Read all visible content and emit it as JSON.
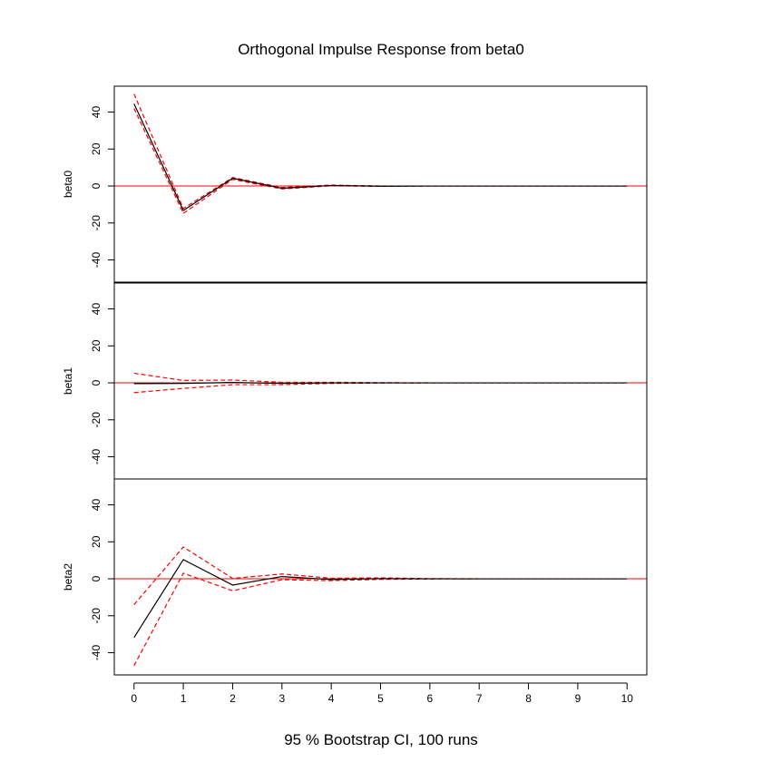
{
  "chart_data": {
    "type": "line",
    "title": "Orthogonal Impulse Response from beta0",
    "xlabel": "95 % Bootstrap CI,  100 runs",
    "x": [
      0,
      1,
      2,
      3,
      4,
      5,
      6,
      7,
      8,
      9,
      10
    ],
    "x_ticks": [
      "0",
      "1",
      "2",
      "3",
      "4",
      "5",
      "6",
      "7",
      "8",
      "9",
      "10"
    ],
    "xlim": [
      -0.4,
      10.4
    ],
    "ylim": [
      -52,
      54
    ],
    "y_ticks": [
      -40,
      -20,
      0,
      20,
      40
    ],
    "y_tick_labels": [
      "-40",
      "-20",
      "0",
      "20",
      "40"
    ],
    "colors": {
      "response": "#000000",
      "ci": "#ff0000",
      "zero_line": "#ff0000"
    },
    "panels": [
      {
        "label": "beta0",
        "response": [
          44.5,
          -13.2,
          4.2,
          -1.2,
          0.3,
          -0.1,
          0.0,
          0.0,
          0.0,
          0.0,
          0.0
        ],
        "upper": [
          49.8,
          -12.2,
          4.6,
          -0.8,
          0.5,
          0.0,
          0.0,
          0.0,
          0.0,
          0.0,
          0.0
        ],
        "lower": [
          42.0,
          -14.8,
          3.6,
          -1.6,
          0.1,
          -0.2,
          0.0,
          0.0,
          0.0,
          0.0,
          0.0
        ]
      },
      {
        "label": "beta1",
        "response": [
          -0.4,
          -0.3,
          0.2,
          -0.3,
          0.0,
          0.0,
          0.0,
          0.0,
          0.0,
          0.0,
          0.0
        ],
        "upper": [
          5.2,
          1.3,
          1.5,
          0.3,
          0.3,
          0.1,
          0.0,
          0.0,
          0.0,
          0.0,
          0.0
        ],
        "lower": [
          -5.3,
          -3.0,
          -1.0,
          -1.0,
          -0.3,
          -0.1,
          0.0,
          0.0,
          0.0,
          0.0,
          0.0
        ]
      },
      {
        "label": "beta2",
        "response": [
          -31.8,
          10.4,
          -3.4,
          1.2,
          -0.4,
          0.1,
          0.0,
          0.0,
          0.0,
          0.0,
          0.0
        ],
        "upper": [
          -14.0,
          17.2,
          0.2,
          2.6,
          0.3,
          0.5,
          0.1,
          0.0,
          0.0,
          0.0,
          0.0
        ],
        "lower": [
          -47.0,
          3.0,
          -6.5,
          -0.5,
          -1.0,
          -0.3,
          -0.1,
          0.0,
          0.0,
          0.0,
          0.0
        ]
      }
    ]
  }
}
